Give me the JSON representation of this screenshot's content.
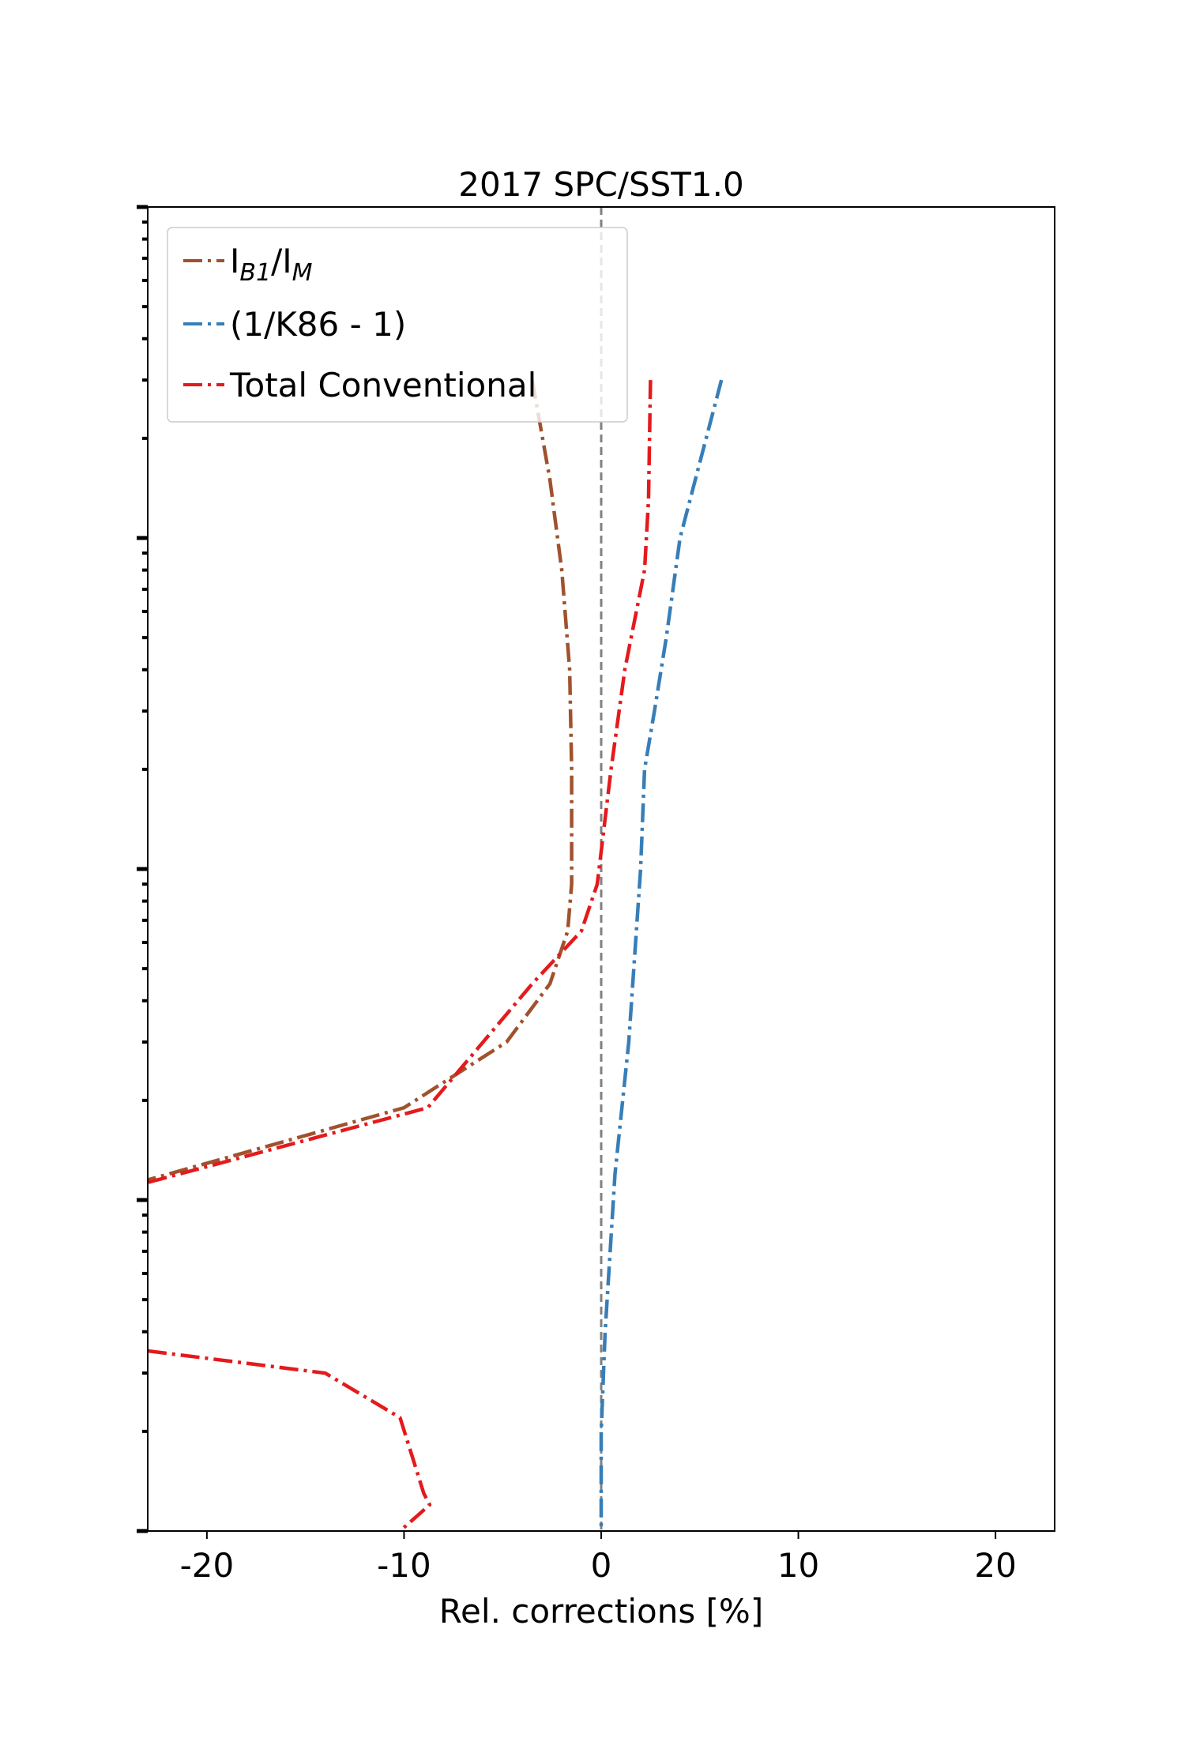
{
  "chart_data": {
    "type": "line",
    "title": "2017 SPC/SST1.0",
    "xlabel": "Rel. corrections [%]",
    "ylabel": "",
    "xlim": [
      -23,
      23
    ],
    "y_scale": "log",
    "ylim": [
      0.1,
      1000
    ],
    "x_ticks": [
      -20,
      -10,
      0,
      10,
      20
    ],
    "x_tick_labels": [
      "-20",
      "-10",
      "0",
      "10",
      "20"
    ],
    "y_tick_labels_visible": false,
    "grid": false,
    "legend_position": "upper-left",
    "reference_line": {
      "x": 0,
      "color": "#808080",
      "style": "dashed"
    },
    "series": [
      {
        "name_main": "I",
        "name_sub1": "B1",
        "name_mid": "/I",
        "name_sub2": "M",
        "color": "#a0522d",
        "style": "dashdot",
        "x": [
          -3.5,
          -2.6,
          -2.0,
          -1.6,
          -1.5,
          -1.5,
          -1.5,
          -1.7,
          -2.6,
          -4.8,
          -10.0,
          -23.0
        ],
        "y": [
          300,
          150,
          80,
          40,
          20,
          13,
          9,
          6.5,
          4.5,
          3,
          1.9,
          1.15
        ]
      },
      {
        "name": "(1/K86 - 1)",
        "color": "#377eb8",
        "style": "dashdot",
        "x": [
          6.1,
          4.0,
          3.3,
          2.7,
          2.2,
          2.0,
          1.4,
          0.7,
          0.2,
          0.0,
          0.0,
          0.0,
          0.0,
          0.0
        ],
        "y": [
          300,
          100,
          50,
          30,
          20,
          10,
          3,
          1.2,
          0.4,
          0.2,
          0.15,
          0.11,
          0.1,
          0.1
        ]
      },
      {
        "name": "Total Conventional",
        "color": "#e41a1c",
        "style": "dashdot",
        "x": [
          2.5,
          2.4,
          2.2,
          1.2,
          0.5,
          -0.2,
          -1.0,
          -3.5,
          -8.8,
          -23.0
        ],
        "y": [
          300,
          130,
          80,
          40,
          20,
          9,
          6.5,
          4.5,
          1.9,
          1.13
        ]
      },
      {
        "name": "",
        "color": "#e41a1c",
        "style": "dashdot",
        "x": [
          -23.0,
          -14.0,
          -10.2,
          -9.0,
          -8.7,
          -10.2
        ],
        "y": [
          0.35,
          0.3,
          0.22,
          0.13,
          0.12,
          0.1
        ]
      }
    ]
  }
}
